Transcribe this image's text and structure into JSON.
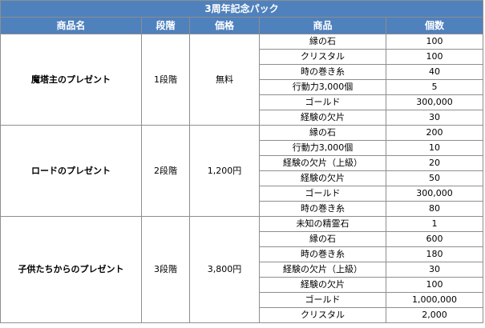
{
  "table": {
    "title": "3周年記念パック",
    "headers": [
      "商品名",
      "段階",
      "価格",
      "商品",
      "個数"
    ],
    "packs": [
      {
        "name": "魔塔主のプレゼント",
        "stage": "1段階",
        "price": "無料",
        "items": [
          {
            "item": "縁の石",
            "qty": "100"
          },
          {
            "item": "クリスタル",
            "qty": "100"
          },
          {
            "item": "時の巻き糸",
            "qty": "40"
          },
          {
            "item": "行動力3,000個",
            "qty": "5"
          },
          {
            "item": "ゴールド",
            "qty": "300,000"
          },
          {
            "item": "経験の欠片",
            "qty": "30"
          }
        ]
      },
      {
        "name": "ロードのプレゼント",
        "stage": "2段階",
        "price": "1,200円",
        "items": [
          {
            "item": "縁の石",
            "qty": "200"
          },
          {
            "item": "行動力3,000個",
            "qty": "10"
          },
          {
            "item": "経験の欠片（上級）",
            "qty": "20"
          },
          {
            "item": "経験の欠片",
            "qty": "50"
          },
          {
            "item": "ゴールド",
            "qty": "300,000"
          },
          {
            "item": "時の巻き糸",
            "qty": "80"
          }
        ]
      },
      {
        "name": "子供たちからのプレゼント",
        "stage": "3段階",
        "price": "3,800円",
        "items": [
          {
            "item": "未知の精霊石",
            "qty": "1"
          },
          {
            "item": "縁の石",
            "qty": "600"
          },
          {
            "item": "時の巻き糸",
            "qty": "180"
          },
          {
            "item": "経験の欠片（上級）",
            "qty": "30"
          },
          {
            "item": "経験の欠片",
            "qty": "100"
          },
          {
            "item": "ゴールド",
            "qty": "1,000,000"
          },
          {
            "item": "クリスタル",
            "qty": "2,000"
          }
        ]
      }
    ]
  }
}
